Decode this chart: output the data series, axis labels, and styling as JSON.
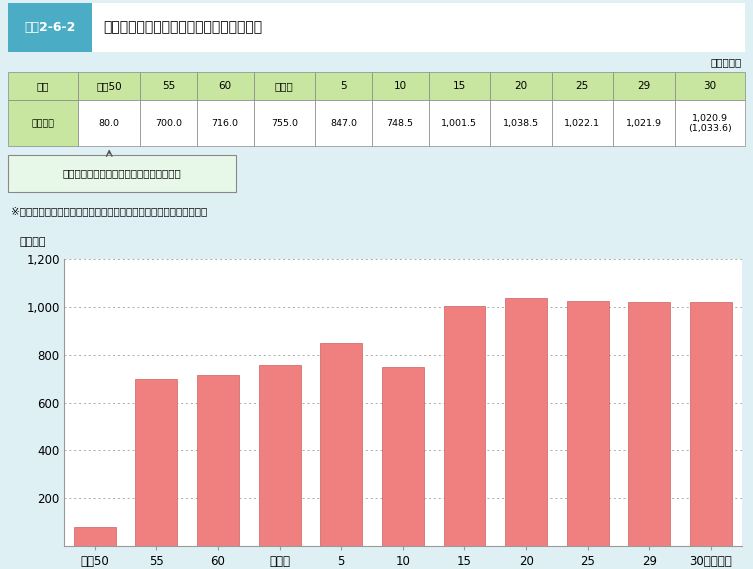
{
  "fig_label": "図表2-6-2",
  "title_text": "私立高等学校等経常費助成費等補助の推移",
  "unit_label": "単位：億円",
  "table_header": [
    "年度",
    "昭和50",
    "55",
    "60",
    "平成元",
    "5",
    "10",
    "15",
    "20",
    "25",
    "29",
    "30"
  ],
  "table_row_label": "補助金額",
  "table_values_str": [
    "80.0",
    "700.0",
    "716.0",
    "755.0",
    "847.0",
    "748.5",
    "1,001.5",
    "1,038.5",
    "1,022.1",
    "1,021.9",
    "1,020.9\n(1,033.6)"
  ],
  "annotation_box": "私立学校振興助成法成立・補助金制度創設",
  "note": "※（　）内は，子ども・子育て支援新制度への移行分等を含めた金額",
  "bar_labels": [
    "昭和50",
    "55",
    "60",
    "平成元",
    "5",
    "10",
    "15",
    "20",
    "25",
    "29",
    "30（年度）"
  ],
  "bar_values": [
    80.0,
    700.0,
    716.0,
    755.0,
    847.0,
    748.5,
    1001.5,
    1038.5,
    1022.1,
    1021.9,
    1020.9
  ],
  "bar_color": "#F08080",
  "bar_edge_color": "#D06060",
  "ylim": [
    0,
    1200
  ],
  "yticks": [
    0,
    200,
    400,
    600,
    800,
    1000,
    1200
  ],
  "ylabel": "（億円）",
  "grid_color": "#AAAAAA",
  "background_color": "#DFF0F5",
  "chart_bg_color": "#FFFFFF",
  "header_bg_color": "#C8E6A0",
  "title_left_bg": "#4BACC6",
  "title_left_text": "#FFFFFF",
  "title_right_bg": "#FFFFFF",
  "box_bg_color": "#E8F8E8",
  "box_border_color": "#888888",
  "table_border_color": "#888888",
  "arrow_color": "#555555"
}
